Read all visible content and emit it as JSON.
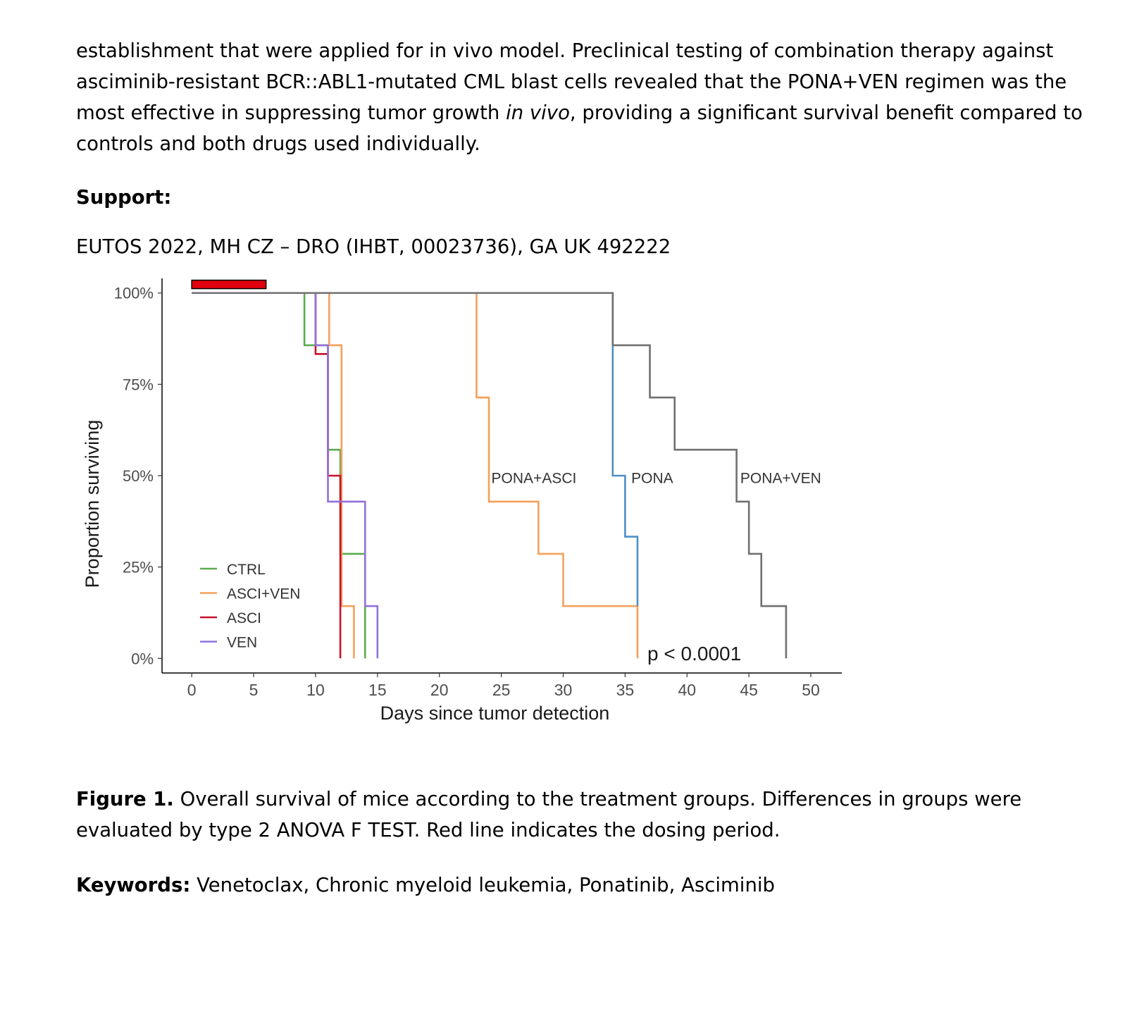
{
  "intro": {
    "part1": "establishment that were applied for in vivo model. Preclinical testing of combination therapy against asciminib-resistant BCR::ABL1-mutated CML blast cells revealed that the PONA+VEN regimen was the most effective in suppressing tumor growth ",
    "italic": "in vivo",
    "part2": ", providing a significant survival benefit compared to controls and both drugs used individually."
  },
  "support": {
    "heading": "Support:",
    "text": "EUTOS 2022, MH CZ – DRO (IHBT, 00023736), GA UK 492222"
  },
  "caption": {
    "label": "Figure 1.",
    "text": " Overall survival of mice according to the treatment groups. Differences in groups were evaluated by type 2 ANOVA F TEST. Red line indicates the dosing period."
  },
  "keywords": {
    "label": "Keywords:",
    "text": " Venetoclax, Chronic myeloid leukemia, Ponatinib, Asciminib"
  },
  "chart_data": {
    "type": "line",
    "subtype": "kaplan-meier step",
    "xlabel": "Days since tumor detection",
    "ylabel": "Proportion surviving",
    "xlim": [
      -2.4,
      52.5
    ],
    "ylim": [
      -4,
      104
    ],
    "xticks": [
      0,
      5,
      10,
      15,
      20,
      25,
      30,
      35,
      40,
      45,
      50
    ],
    "yticks": [
      {
        "value": 0,
        "label": "0%"
      },
      {
        "value": 25,
        "label": "25%"
      },
      {
        "value": 50,
        "label": "50%"
      },
      {
        "value": 75,
        "label": "75%"
      },
      {
        "value": 100,
        "label": "100%"
      }
    ],
    "dosing_period": {
      "start": 0,
      "end": 6,
      "color": "#e0000f"
    },
    "annotation": "p < 0.0001",
    "series": [
      {
        "name": "CTRL",
        "color": "#5aac4e",
        "legend": true,
        "steps": [
          [
            0,
            100
          ],
          [
            9.1,
            85.7
          ],
          [
            11,
            85.7
          ],
          [
            11,
            57.1
          ],
          [
            12,
            57.1
          ],
          [
            12,
            28.6
          ],
          [
            14,
            28.6
          ],
          [
            14,
            0
          ]
        ]
      },
      {
        "name": "ASCI+VEN",
        "color": "#f5a05a",
        "legend": true,
        "steps": [
          [
            0,
            100
          ],
          [
            11.1,
            85.7
          ],
          [
            12.1,
            85.7
          ],
          [
            12.1,
            14.3
          ],
          [
            13.1,
            14.3
          ],
          [
            13.1,
            0
          ]
        ]
      },
      {
        "name": "ASCI",
        "color": "#c8102e",
        "legend": true,
        "steps": [
          [
            0,
            100
          ],
          [
            10,
            83.3
          ],
          [
            11,
            83.3
          ],
          [
            11,
            50
          ],
          [
            12,
            50
          ],
          [
            12,
            0
          ]
        ]
      },
      {
        "name": "VEN",
        "color": "#9370db",
        "legend": true,
        "steps": [
          [
            0,
            100
          ],
          [
            10,
            85.7
          ],
          [
            11,
            85.7
          ],
          [
            11,
            42.9
          ],
          [
            14,
            42.9
          ],
          [
            14,
            14.3
          ],
          [
            15,
            14.3
          ],
          [
            15,
            0
          ]
        ]
      },
      {
        "name": "PONA+ASCI",
        "color": "#f5a05a",
        "legend": false,
        "steps": [
          [
            0,
            100
          ],
          [
            23,
            71.4
          ],
          [
            24,
            71.4
          ],
          [
            24,
            42.9
          ],
          [
            28,
            42.9
          ],
          [
            28,
            28.6
          ],
          [
            30,
            28.6
          ],
          [
            30,
            14.3
          ],
          [
            36,
            14.3
          ],
          [
            36,
            0
          ]
        ]
      },
      {
        "name": "PONA",
        "color": "#4e8fc7",
        "legend": false,
        "steps": [
          [
            0,
            100
          ],
          [
            34,
            50
          ],
          [
            35,
            50
          ],
          [
            35,
            33.3
          ],
          [
            36,
            33.3
          ],
          [
            36,
            14.3
          ]
        ]
      },
      {
        "name": "PONA+VEN",
        "color": "#707070",
        "legend": false,
        "steps": [
          [
            0,
            100
          ],
          [
            34,
            85.7
          ],
          [
            37,
            85.7
          ],
          [
            37,
            71.4
          ],
          [
            39,
            71.4
          ],
          [
            39,
            57.1
          ],
          [
            44,
            57.1
          ],
          [
            44,
            42.9
          ],
          [
            45,
            42.9
          ],
          [
            45,
            28.6
          ],
          [
            46,
            28.6
          ],
          [
            46,
            14.3
          ],
          [
            48,
            14.3
          ],
          [
            48,
            0
          ]
        ]
      }
    ],
    "direct_labels": [
      {
        "series": "PONA+ASCI",
        "text": "PONA+ASCI",
        "x": 24.2,
        "y": 48
      },
      {
        "series": "PONA",
        "text": "PONA",
        "x": 35.5,
        "y": 48
      },
      {
        "series": "PONA+VEN",
        "text": "PONA+VEN",
        "x": 44.3,
        "y": 48
      }
    ],
    "grid": false,
    "legend_position": "bottom-left inside"
  }
}
